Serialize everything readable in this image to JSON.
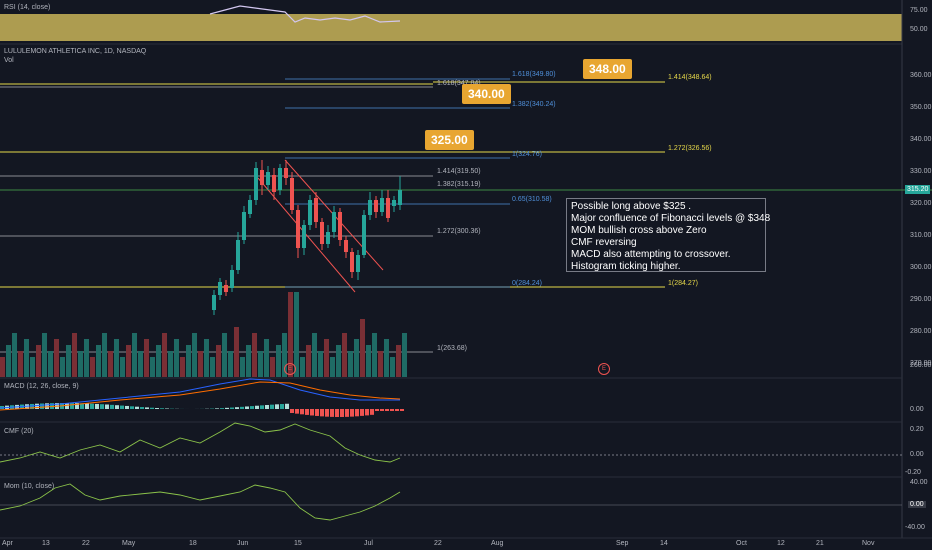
{
  "panes": {
    "rsi": {
      "title": "RSI (14, close)",
      "ticks": [
        "75.00",
        "50.00"
      ]
    },
    "main": {
      "symbol": "LULULEMON ATHLETICA INC, 1D, NASDAQ",
      "vol_label": "Vol",
      "price_ticks": [
        "360.00",
        "350.00",
        "340.00",
        "330.00",
        "320.00",
        "310.00",
        "300.00",
        "290.00",
        "280.00",
        "270.00",
        "260.00"
      ],
      "current_price": "315.20"
    },
    "macd": {
      "title": "MACD (12, 26, close, 9)",
      "ticks": [
        "0.00"
      ]
    },
    "cmf": {
      "title": "CMF (20)",
      "ticks": [
        "0.20",
        "0.00",
        "-0.20"
      ]
    },
    "mom": {
      "title": "Mom (10, close)",
      "ticks": [
        "40.00",
        "0.00",
        "-40.00"
      ],
      "current": "0.00"
    }
  },
  "x_axis": [
    "Apr",
    "13",
    "22",
    "May",
    "18",
    "Jun",
    "15",
    "Jul",
    "22",
    "Aug",
    "Sep",
    "14",
    "Oct",
    "12",
    "21",
    "Nov"
  ],
  "fib_labels": {
    "f1618a": "1.618(347.84)",
    "f1618b": "1.618(349.80)",
    "f1414a": "1.414(348.64)",
    "f1382a": "1.382(340.24)",
    "f1272a": "1.272(326.56)",
    "f1top": "1(324.76)",
    "f1414b": "1.414(319.50)",
    "f1382b": "1.382(315.19)",
    "f065": "0.65(310.58)",
    "f1272b": "1.272(300.36)",
    "f0": "0(284.24)",
    "f1low": "1(284.27)",
    "f1vol": "1(263.68)"
  },
  "targets": {
    "t325": "325.00",
    "t340": "340.00",
    "t348": "348.00"
  },
  "note": [
    "Possible long above $325 .",
    "Major confluence of Fibonacci levels @ $348",
    "MOM bullish cross above Zero",
    "CMF reversing",
    "MACD also attempting to crossover.",
    "Histogram ticking higher."
  ],
  "earnings_marker": "E",
  "colors": {
    "up": "#26a69a",
    "down": "#ef5350",
    "rsi_band": "#c9b458",
    "fib_yellow": "#e6d84a",
    "fib_blue": "#4f8fd9"
  }
}
